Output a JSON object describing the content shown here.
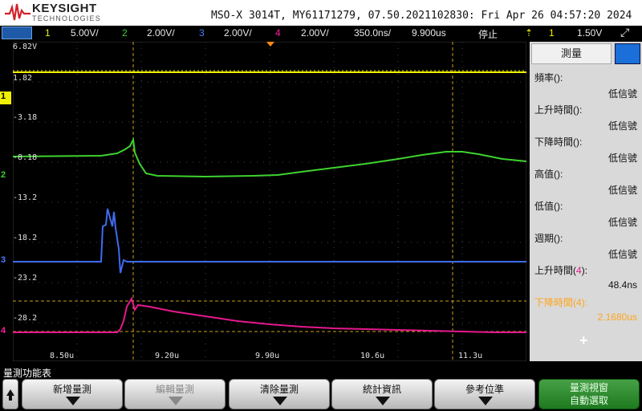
{
  "header": {
    "brand": "KEYSIGHT",
    "brand_sub": "TECHNOLOGIES",
    "title": "MSO-X 3014T, MY61171279, 07.50.2021102830: Fri Apr 26 04:57:20 2024"
  },
  "channel_bar": {
    "ch1_num": "1",
    "ch1_scale": "5.00V/",
    "ch2_num": "2",
    "ch2_scale": "2.00V/",
    "ch3_num": "3",
    "ch3_scale": "2.00V/",
    "ch4_num": "4",
    "ch4_scale": "2.00V/",
    "timebase": "350.0ns/",
    "delay": "9.900us",
    "run_state": "停止",
    "trigger_source": "1",
    "trigger_level": "1.50V"
  },
  "graticule": {
    "y_labels": [
      "6.82V",
      "1.82",
      "-3.18",
      "-8.18",
      "-13.2",
      "-18.2",
      "-23.2",
      "-28.2"
    ],
    "x_labels": [
      "8.50u",
      "9.20u",
      "9.90u",
      "10.6u",
      "11.3u"
    ],
    "channel_markers": [
      "1",
      "2",
      "3",
      "4"
    ]
  },
  "measure_panel": {
    "tab_label": "測量",
    "items": [
      {
        "label": "頻率(",
        "src": "",
        "suffix": "):",
        "value": "低信號"
      },
      {
        "label": "上升時間(",
        "src": "",
        "suffix": "):",
        "value": "低信號"
      },
      {
        "label": "下降時間(",
        "src": "",
        "suffix": "):",
        "value": "低信號"
      },
      {
        "label": "高值(",
        "src": "",
        "suffix": "):",
        "value": "低信號"
      },
      {
        "label": "低值(",
        "src": "",
        "suffix": "):",
        "value": "低信號"
      },
      {
        "label": "週期(",
        "src": "",
        "suffix": "):",
        "value": "低信號"
      },
      {
        "label": "上升時間(",
        "src": "4",
        "suffix": "):",
        "value": "48.4ns"
      },
      {
        "label": "下降時間(",
        "src": "4",
        "suffix": "):",
        "value": "2.1680us"
      }
    ],
    "add_symbol": "+"
  },
  "softkeys": {
    "menu_title": "量測功能表",
    "keys": [
      "新增量測",
      "編輯量測",
      "清除量測",
      "統計資訊",
      "參考位準"
    ],
    "green_key_line1": "量測視窗",
    "green_key_line2": "自動選取"
  },
  "colors": {
    "ch1": "#f0f000",
    "ch2": "#3ed22f",
    "ch3": "#4a7eff",
    "ch4": "#ff1aa0",
    "cursor": "#c8a018",
    "active_measure": "#ffa51a"
  }
}
